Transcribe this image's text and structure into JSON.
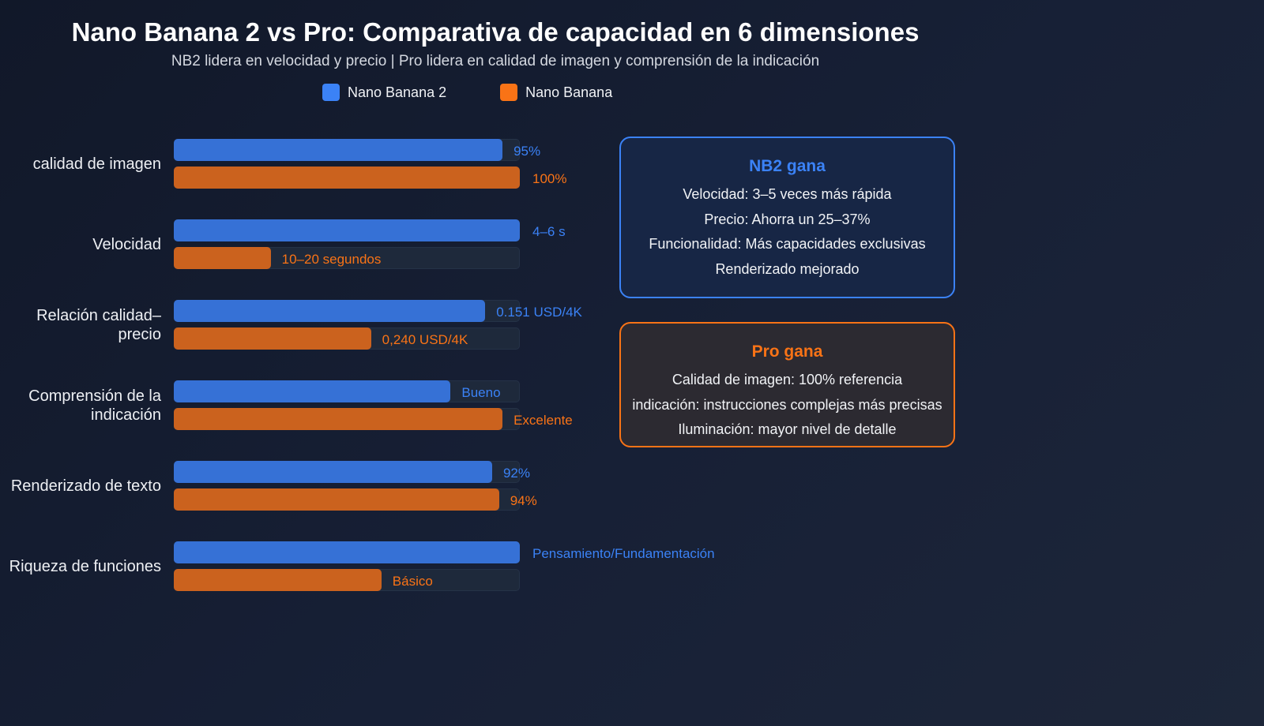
{
  "chart_data": {
    "type": "bar",
    "orientation": "horizontal",
    "title": "Nano Banana 2 vs Pro: Comparativa de capacidad en 6 dimensiones",
    "subtitle": "NB2 lidera en velocidad y precio | Pro lidera en calidad de imagen y comprensión de la indicación",
    "legend_position": "top",
    "xlim": [
      0,
      100
    ],
    "grid": false,
    "categories": [
      "calidad de imagen",
      "Velocidad",
      "Relación calidad–precio",
      "Comprensión de la indicación",
      "Renderizado de texto",
      "Riqueza de funciones"
    ],
    "series": [
      {
        "name": "Nano Banana 2",
        "color": "#3b82f6",
        "bar_color": "#3671d6",
        "values": [
          95,
          100,
          90,
          80,
          92,
          100
        ],
        "labels": [
          "95%",
          "4–6 s",
          "0.151 USD/4K",
          "Bueno",
          "92%",
          "Pensamiento/Fundamentación"
        ]
      },
      {
        "name": "Nano Banana",
        "color": "#f97316",
        "bar_color": "#cb621e",
        "values": [
          100,
          28,
          57,
          95,
          94,
          60
        ],
        "labels": [
          "100%",
          "10–20 segundos",
          "0,240 USD/4K",
          "Excelente",
          "94%",
          "Básico"
        ]
      }
    ]
  },
  "panels": {
    "nb2": {
      "title": "NB2 gana",
      "color": "#3b82f6",
      "lines": [
        "Velocidad: 3–5 veces más rápida",
        "Precio: Ahorra un 25–37%",
        "Funcionalidad: Más capacidades exclusivas",
        "Renderizado mejorado"
      ]
    },
    "pro": {
      "title": "Pro gana",
      "color": "#f97316",
      "lines": [
        "Calidad de imagen: 100% referencia",
        "indicación: instrucciones complejas más precisas",
        "Iluminación: mayor nivel de detalle"
      ]
    }
  }
}
